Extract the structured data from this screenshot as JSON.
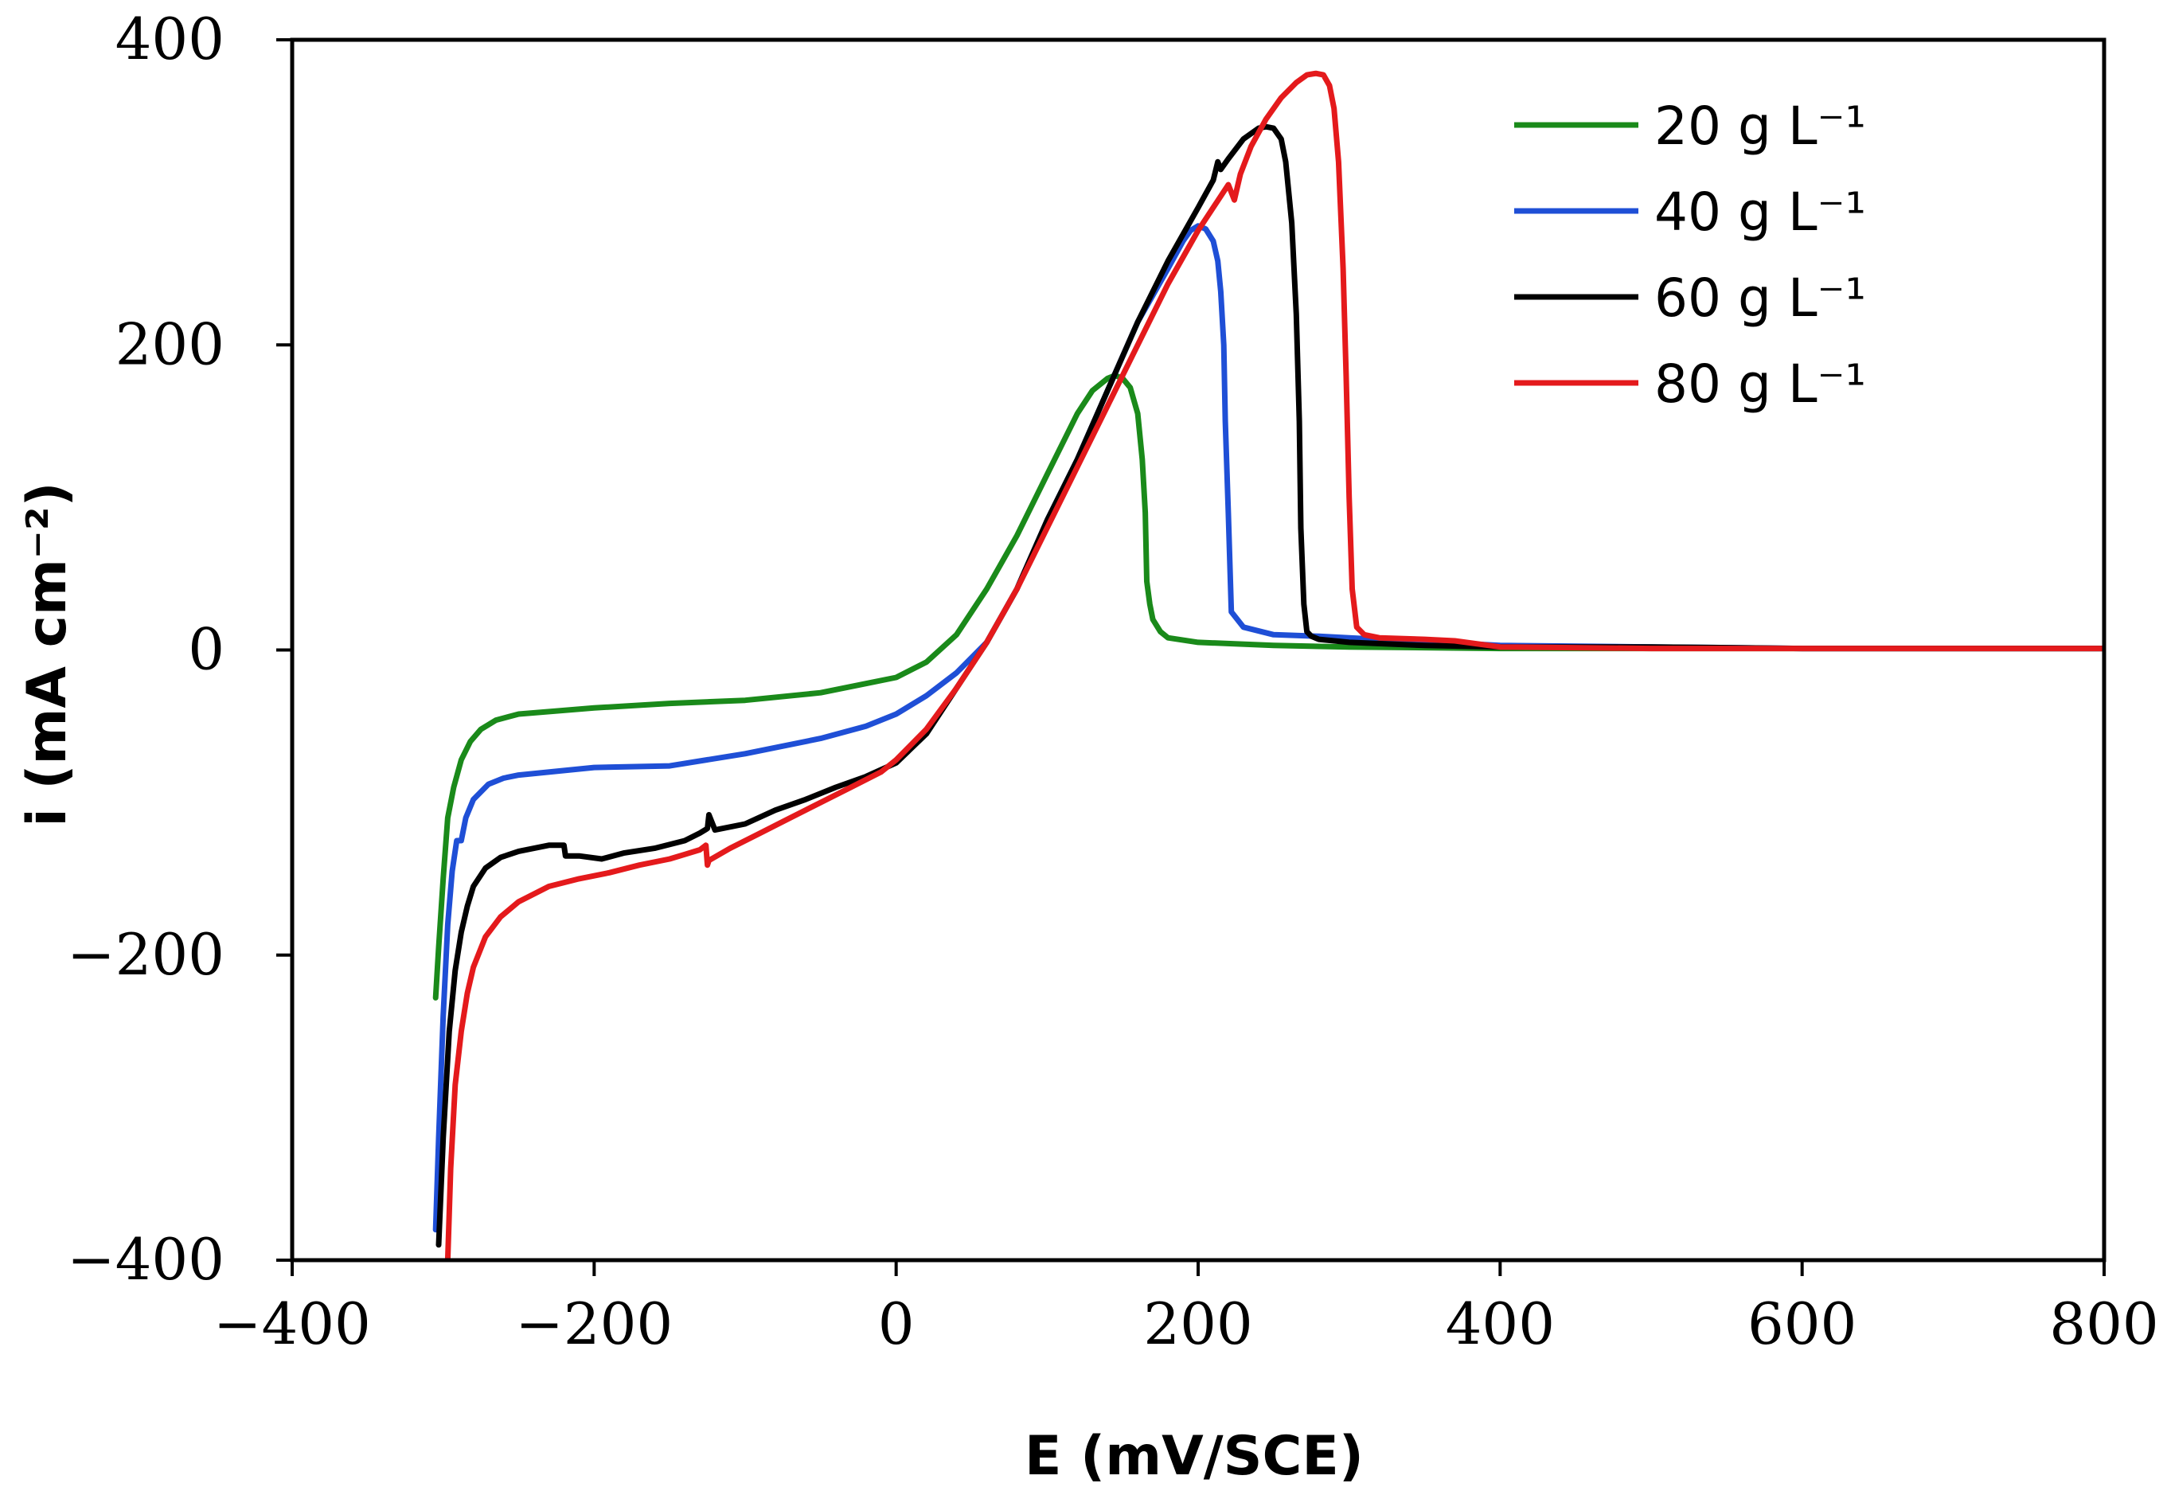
{
  "chart_data": {
    "type": "line",
    "title": "",
    "xlabel": "E (mV/SCE)",
    "ylabel": "i (mA cm⁻²)",
    "xlim": [
      -400,
      800
    ],
    "ylim": [
      -400,
      400
    ],
    "xticks": [
      -400,
      -200,
      0,
      200,
      400,
      600,
      800
    ],
    "yticks": [
      -400,
      -200,
      0,
      200,
      400
    ],
    "xtick_labels": [
      "−400",
      "−200",
      "0",
      "200",
      "400",
      "600",
      "800"
    ],
    "ytick_labels": [
      "−400",
      "−200",
      "0",
      "200",
      "400"
    ],
    "grid": false,
    "legend_position": "top-right",
    "series": [
      {
        "name": "20 g L⁻¹",
        "color": "#1a8a1a",
        "x": [
          -305,
          -303,
          -300,
          -297,
          -293,
          -288,
          -282,
          -275,
          -265,
          -250,
          -200,
          -150,
          -100,
          -50,
          -20,
          0,
          20,
          40,
          60,
          80,
          100,
          120,
          130,
          140,
          145,
          150,
          155,
          160,
          163,
          165,
          166,
          168,
          170,
          175,
          180,
          200,
          250,
          300,
          400,
          500,
          600,
          700,
          800
        ],
        "y": [
          -228,
          -195,
          -150,
          -110,
          -90,
          -72,
          -60,
          -52,
          -46,
          -42,
          -38,
          -35,
          -33,
          -28,
          -22,
          -18,
          -8,
          10,
          40,
          75,
          115,
          155,
          170,
          178,
          180,
          178,
          172,
          155,
          125,
          90,
          45,
          30,
          20,
          12,
          8,
          5,
          3,
          2,
          1,
          1,
          1,
          1,
          1
        ]
      },
      {
        "name": "40 g L⁻¹",
        "color": "#1f4fd6",
        "x": [
          -305,
          -303,
          -300,
          -297,
          -294,
          -291,
          -288,
          -285,
          -280,
          -270,
          -260,
          -250,
          -200,
          -150,
          -100,
          -50,
          -20,
          0,
          20,
          40,
          60,
          80,
          100,
          120,
          140,
          160,
          180,
          190,
          195,
          200,
          205,
          210,
          213,
          215,
          217,
          218,
          220,
          222,
          230,
          250,
          280,
          300,
          400,
          500,
          600,
          700,
          800
        ],
        "y": [
          -380,
          -320,
          -240,
          -180,
          -145,
          -125,
          -125,
          -110,
          -98,
          -88,
          -84,
          -82,
          -77,
          -76,
          -68,
          -58,
          -50,
          -42,
          -30,
          -15,
          5,
          40,
          85,
          125,
          170,
          215,
          250,
          268,
          275,
          278,
          276,
          268,
          255,
          235,
          200,
          150,
          90,
          25,
          15,
          10,
          9,
          8,
          3,
          2,
          1,
          1,
          1
        ]
      },
      {
        "name": "60 g L⁻¹",
        "color": "#000000",
        "x": [
          -303,
          -300,
          -296,
          -292,
          -288,
          -284,
          -280,
          -272,
          -262,
          -250,
          -230,
          -220,
          -219,
          -210,
          -195,
          -180,
          -160,
          -140,
          -130,
          -125,
          -124,
          -120,
          -100,
          -80,
          -60,
          -40,
          -20,
          0,
          20,
          40,
          60,
          80,
          100,
          120,
          140,
          160,
          180,
          200,
          210,
          213,
          215,
          220,
          230,
          240,
          245,
          250,
          255,
          258,
          262,
          265,
          267,
          268,
          270,
          272,
          275,
          280,
          300,
          350,
          400,
          500,
          600,
          700,
          800
        ],
        "y": [
          -390,
          -320,
          -250,
          -210,
          -185,
          -168,
          -155,
          -143,
          -136,
          -132,
          -128,
          -128,
          -135,
          -135,
          -137,
          -133,
          -130,
          -125,
          -120,
          -117,
          -108,
          -118,
          -114,
          -105,
          -98,
          -90,
          -83,
          -74,
          -55,
          -25,
          5,
          40,
          85,
          125,
          170,
          215,
          255,
          290,
          308,
          320,
          315,
          322,
          335,
          342,
          343,
          342,
          335,
          320,
          280,
          220,
          150,
          80,
          30,
          12,
          9,
          7,
          5,
          3,
          2,
          2,
          1,
          1,
          1
        ]
      },
      {
        "name": "80 g L⁻¹",
        "color": "#e41a1c",
        "x": [
          -297,
          -295,
          -292,
          -288,
          -284,
          -280,
          -272,
          -262,
          -250,
          -230,
          -210,
          -190,
          -170,
          -150,
          -140,
          -130,
          -126,
          -125,
          -124,
          -110,
          -90,
          -70,
          -50,
          -30,
          -10,
          0,
          20,
          40,
          60,
          80,
          100,
          120,
          140,
          160,
          180,
          200,
          220,
          224,
          228,
          235,
          245,
          255,
          265,
          272,
          278,
          283,
          287,
          290,
          293,
          296,
          298,
          300,
          302,
          305,
          310,
          320,
          350,
          370,
          400,
          500,
          600,
          700,
          800
        ],
        "y": [
          -400,
          -340,
          -285,
          -250,
          -225,
          -208,
          -188,
          -175,
          -165,
          -155,
          -150,
          -146,
          -141,
          -137,
          -134,
          -131,
          -128,
          -141,
          -138,
          -130,
          -120,
          -110,
          -100,
          -90,
          -80,
          -72,
          -52,
          -25,
          5,
          40,
          80,
          120,
          160,
          200,
          240,
          275,
          305,
          295,
          312,
          330,
          348,
          362,
          372,
          377,
          378,
          377,
          370,
          355,
          320,
          250,
          180,
          100,
          40,
          15,
          10,
          8,
          7,
          6,
          2,
          1,
          1,
          1,
          1
        ]
      }
    ]
  }
}
